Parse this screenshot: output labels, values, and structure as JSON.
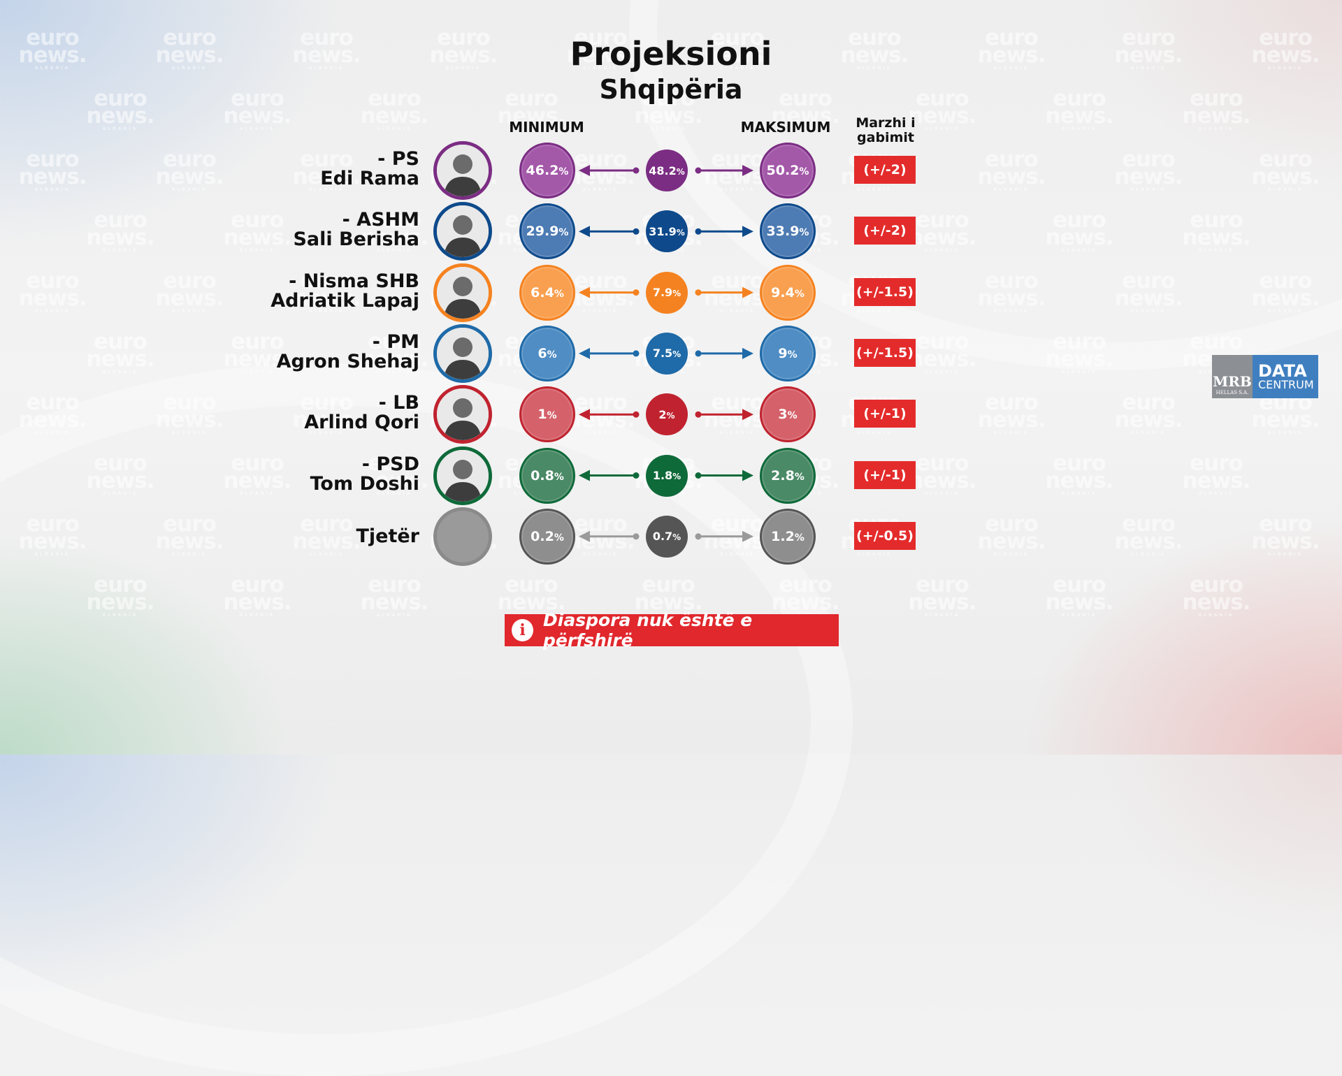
{
  "title": "Projeksioni",
  "subtitle": "Shqipëria",
  "watermark": {
    "line1": "euro",
    "line2": "news.",
    "line3": "ALBANIA"
  },
  "columns": {
    "min": "MINIMUM",
    "max": "MAKSIMUM",
    "margin": "Marzhi i gabimit"
  },
  "note": "Diaspora nuk është e përfshirë",
  "note_icon": "info-icon",
  "logo": {
    "left_top": "MRB",
    "left_bottom": "HELLAS S.A.",
    "right_top": "DATA",
    "right_bottom": "CENTRUM"
  },
  "chart_data": {
    "type": "table",
    "title": "Projeksioni",
    "subtitle": "Shqipëria",
    "columns": [
      "MINIMUM",
      "MAKSIMUM",
      "Marzhi i gabimit"
    ],
    "rows": [
      {
        "party": "- PS",
        "leader": "Edi Rama",
        "min": "46.2",
        "mid": "48.2",
        "max": "50.2",
        "margin": "(+/-2)",
        "color": "#7b2d83",
        "ring": "#7b2d83",
        "light": "#a358a8"
      },
      {
        "party": "- ASHM",
        "leader": "Sali Berisha",
        "min": "29.9",
        "mid": "31.9",
        "max": "33.9",
        "margin": "(+/-2)",
        "color": "#0e4a8b",
        "ring": "#0e4a8b",
        "light": "#4d7bb3"
      },
      {
        "party": "- Nisma SHB",
        "leader": "Adriatik Lapaj",
        "min": "6.4",
        "mid": "7.9",
        "max": "9.4",
        "margin": "(+/-1.5)",
        "color": "#f58220",
        "ring": "#f58220",
        "light": "#f9a050"
      },
      {
        "party": "- PM",
        "leader": "Agron Shehaj",
        "min": "6",
        "mid": "7.5",
        "max": "9",
        "margin": "(+/-1.5)",
        "color": "#1f6aa8",
        "ring": "#1f6aa8",
        "light": "#4f8dc4"
      },
      {
        "party": "- LB",
        "leader": "Arlind Qori",
        "min": "1",
        "mid": "2",
        "max": "3",
        "margin": "(+/-1)",
        "color": "#c0232f",
        "ring": "#c0232f",
        "light": "#d5616a"
      },
      {
        "party": "- PSD",
        "leader": "Tom Doshi",
        "min": "0.8",
        "mid": "1.8",
        "max": "2.8",
        "margin": "(+/-1)",
        "color": "#0f6a3a",
        "ring": "#0f6a3a",
        "light": "#4a8a66"
      },
      {
        "party": "",
        "leader": "Tjetër",
        "min": "0.2",
        "mid": "0.7",
        "max": "1.2",
        "margin": "(+/-0.5)",
        "color": "#555555",
        "ring": "#8a8a8a",
        "light": "#8e8e8e"
      }
    ],
    "unit": "%"
  }
}
